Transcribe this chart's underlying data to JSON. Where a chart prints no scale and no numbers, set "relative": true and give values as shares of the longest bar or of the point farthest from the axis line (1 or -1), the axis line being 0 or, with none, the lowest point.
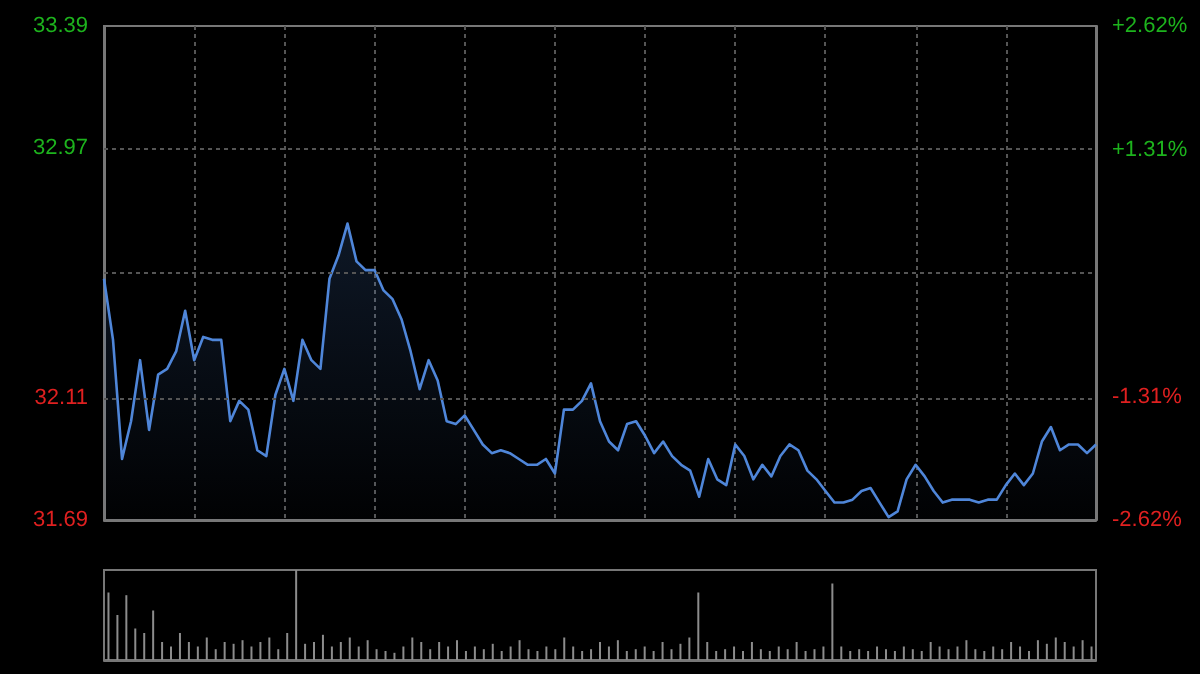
{
  "chart_data": [
    {
      "type": "area",
      "categories": [
        null,
        null,
        null,
        null,
        null,
        null,
        null,
        null,
        null,
        null,
        null,
        null,
        null,
        null,
        null,
        null,
        null,
        null,
        null,
        null,
        null,
        null,
        null,
        null,
        null,
        null,
        null,
        null,
        null,
        null,
        null,
        null,
        null,
        null,
        null,
        null,
        null,
        null,
        null,
        null,
        null,
        null,
        null,
        null,
        null,
        null,
        null,
        null,
        null,
        null,
        null,
        null,
        null,
        null,
        null,
        null,
        null,
        null,
        null,
        null,
        null,
        null,
        null,
        null,
        null,
        null,
        null,
        null,
        null,
        null,
        null,
        null,
        null,
        null,
        null,
        null,
        null,
        null,
        null,
        null,
        null,
        null,
        null,
        null,
        null,
        null,
        null,
        null,
        null,
        null,
        null,
        null,
        null,
        null,
        null,
        null,
        null,
        null,
        null,
        null,
        null,
        null,
        null,
        null,
        null,
        null,
        null,
        null,
        null,
        null,
        null
      ],
      "series": [
        {
          "color": "#4f86d9",
          "values": [
            32.52,
            32.31,
            31.9,
            32.03,
            32.24,
            32.0,
            32.19,
            32.21,
            32.27,
            32.41,
            32.24,
            32.32,
            32.31,
            32.31,
            32.03,
            32.1,
            32.07,
            31.93,
            31.91,
            32.12,
            32.21,
            32.1,
            32.31,
            32.24,
            32.21,
            32.52,
            32.6,
            32.71,
            32.58,
            32.55,
            32.55,
            32.48,
            32.45,
            32.38,
            32.27,
            32.14,
            32.24,
            32.17,
            32.03,
            32.02,
            32.05,
            32.0,
            31.95,
            31.92,
            31.93,
            31.92,
            31.9,
            31.88,
            31.88,
            31.9,
            31.85,
            32.07,
            32.07,
            32.1,
            32.16,
            32.03,
            31.96,
            31.93,
            32.02,
            32.03,
            31.98,
            31.92,
            31.96,
            31.91,
            31.88,
            31.86,
            31.77,
            31.9,
            31.83,
            31.81,
            31.95,
            31.91,
            31.83,
            31.88,
            31.84,
            31.91,
            31.95,
            31.93,
            31.86,
            31.83,
            31.79,
            31.75,
            31.75,
            31.76,
            31.79,
            31.8,
            31.75,
            31.7,
            31.72,
            31.83,
            31.88,
            31.84,
            31.79,
            31.75,
            31.76,
            31.76,
            31.76,
            31.75,
            31.76,
            31.76,
            31.81,
            31.85,
            31.81,
            31.85,
            31.96,
            32.01,
            31.93,
            31.95,
            31.95,
            31.92,
            31.95
          ]
        }
      ],
      "ylim": [
        31.69,
        33.39
      ],
      "yticks": [
        31.69,
        32.11,
        {
          "value": 32.54,
          "label": null
        },
        32.97,
        33.39
      ],
      "y2lim": [
        -2.62,
        2.62
      ],
      "y2ticks": [
        {
          "value": -2.62,
          "label": "-2.62%"
        },
        {
          "value": -1.31,
          "label": "-1.31%"
        },
        {
          "value": 0,
          "label": null
        },
        {
          "value": 1.31,
          "label": "+1.31%"
        },
        {
          "value": 2.62,
          "label": "+2.62%"
        }
      ],
      "grid": true
    },
    {
      "type": "bar",
      "relative": true,
      "categories": [
        null,
        null,
        null,
        null,
        null,
        null,
        null,
        null,
        null,
        null,
        null,
        null,
        null,
        null,
        null,
        null,
        null,
        null,
        null,
        null,
        null,
        null,
        null,
        null,
        null,
        null,
        null,
        null,
        null,
        null,
        null,
        null,
        null,
        null,
        null,
        null,
        null,
        null,
        null,
        null,
        null,
        null,
        null,
        null,
        null,
        null,
        null,
        null,
        null,
        null,
        null,
        null,
        null,
        null,
        null,
        null,
        null,
        null,
        null,
        null,
        null,
        null,
        null,
        null,
        null,
        null,
        null,
        null,
        null,
        null,
        null,
        null,
        null,
        null,
        null,
        null,
        null,
        null,
        null,
        null,
        null,
        null,
        null,
        null,
        null,
        null,
        null,
        null,
        null,
        null,
        null,
        null,
        null,
        null,
        null,
        null,
        null,
        null,
        null,
        null,
        null,
        null,
        null,
        null,
        null,
        null,
        null,
        null,
        null,
        null,
        null
      ],
      "series": [
        {
          "color": "#8c8c8c",
          "values": [
            0.75,
            0.5,
            0.72,
            0.35,
            0.3,
            0.55,
            0.2,
            0.15,
            0.3,
            0.2,
            0.15,
            0.25,
            0.12,
            0.2,
            0.18,
            0.22,
            0.15,
            0.2,
            0.25,
            0.12,
            0.3,
            1.0,
            0.18,
            0.2,
            0.28,
            0.15,
            0.2,
            0.25,
            0.15,
            0.22,
            0.12,
            0.1,
            0.08,
            0.15,
            0.25,
            0.2,
            0.12,
            0.2,
            0.15,
            0.22,
            0.1,
            0.15,
            0.12,
            0.18,
            0.1,
            0.15,
            0.22,
            0.12,
            0.1,
            0.15,
            0.12,
            0.25,
            0.15,
            0.1,
            0.12,
            0.2,
            0.15,
            0.22,
            0.1,
            0.12,
            0.15,
            0.1,
            0.2,
            0.12,
            0.18,
            0.25,
            0.75,
            0.2,
            0.1,
            0.12,
            0.15,
            0.1,
            0.2,
            0.12,
            0.1,
            0.15,
            0.12,
            0.2,
            0.1,
            0.12,
            0.15,
            0.85,
            0.15,
            0.1,
            0.12,
            0.1,
            0.15,
            0.12,
            0.1,
            0.15,
            0.12,
            0.1,
            0.2,
            0.15,
            0.12,
            0.15,
            0.22,
            0.12,
            0.1,
            0.15,
            0.12,
            0.2,
            0.15,
            0.1,
            0.22,
            0.18,
            0.25,
            0.2,
            0.15,
            0.22,
            0.15
          ]
        }
      ]
    }
  ]
}
